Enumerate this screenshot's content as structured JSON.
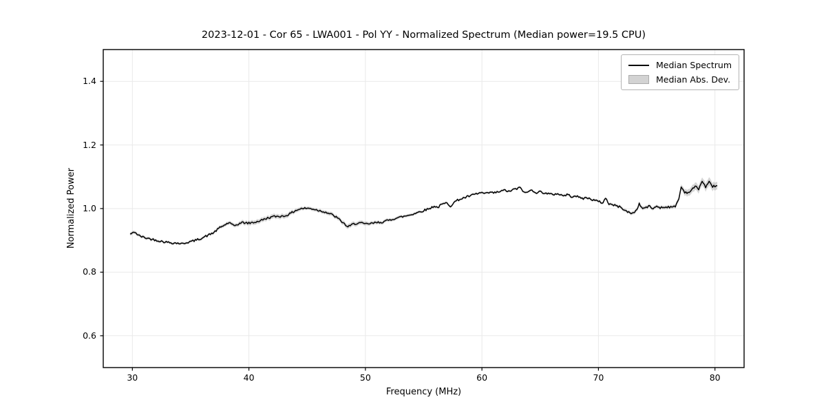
{
  "chart_data": {
    "type": "line",
    "title": "2023-12-01 - Cor 65 - LWA001 - Pol YY - Normalized Spectrum (Median power=19.5 CPU)",
    "xlabel": "Frequency (MHz)",
    "ylabel": "Normalized Power",
    "xlim": [
      27.5,
      82.5
    ],
    "ylim": [
      0.5,
      1.5
    ],
    "x_ticks": [
      30,
      40,
      50,
      60,
      70,
      80
    ],
    "x_tick_labels": [
      "30",
      "40",
      "50",
      "60",
      "70",
      "80"
    ],
    "y_ticks": [
      0.6,
      0.8,
      1.0,
      1.2,
      1.4
    ],
    "y_tick_labels": [
      "0.6",
      "0.8",
      "1.0",
      "1.2",
      "1.4"
    ],
    "grid": true,
    "legend": {
      "position": "upper right",
      "entries": [
        {
          "label": "Median Spectrum",
          "type": "line",
          "color": "#000000"
        },
        {
          "label": "Median Abs. Dev.",
          "type": "patch",
          "color": "#d3d3d3"
        }
      ]
    },
    "noise_amplitude": 0.0033,
    "series": [
      {
        "name": "Median Spectrum",
        "color": "#000000",
        "points": [
          [
            29.8,
            0.92
          ],
          [
            30.0,
            0.922
          ],
          [
            30.2,
            0.927
          ],
          [
            30.5,
            0.916
          ],
          [
            31.0,
            0.909
          ],
          [
            31.5,
            0.905
          ],
          [
            32.0,
            0.901
          ],
          [
            32.5,
            0.897
          ],
          [
            33.0,
            0.894
          ],
          [
            33.5,
            0.892
          ],
          [
            34.0,
            0.891
          ],
          [
            34.3,
            0.889
          ],
          [
            34.6,
            0.893
          ],
          [
            35.0,
            0.896
          ],
          [
            35.5,
            0.901
          ],
          [
            36.0,
            0.908
          ],
          [
            36.5,
            0.916
          ],
          [
            37.0,
            0.925
          ],
          [
            37.5,
            0.94
          ],
          [
            38.0,
            0.95
          ],
          [
            38.3,
            0.956
          ],
          [
            38.7,
            0.945
          ],
          [
            39.0,
            0.95
          ],
          [
            39.4,
            0.956
          ],
          [
            40.0,
            0.954
          ],
          [
            40.5,
            0.957
          ],
          [
            41.0,
            0.962
          ],
          [
            41.5,
            0.969
          ],
          [
            42.0,
            0.974
          ],
          [
            42.5,
            0.976
          ],
          [
            43.0,
            0.976
          ],
          [
            43.5,
            0.983
          ],
          [
            44.0,
            0.994
          ],
          [
            44.5,
            1.0
          ],
          [
            45.0,
            1.001
          ],
          [
            45.5,
            0.999
          ],
          [
            46.0,
            0.994
          ],
          [
            46.5,
            0.99
          ],
          [
            47.0,
            0.983
          ],
          [
            47.5,
            0.973
          ],
          [
            48.0,
            0.958
          ],
          [
            48.5,
            0.942
          ],
          [
            49.0,
            0.952
          ],
          [
            49.5,
            0.955
          ],
          [
            50.0,
            0.951
          ],
          [
            50.5,
            0.953
          ],
          [
            51.0,
            0.956
          ],
          [
            51.5,
            0.958
          ],
          [
            52.0,
            0.963
          ],
          [
            52.5,
            0.969
          ],
          [
            53.0,
            0.973
          ],
          [
            53.5,
            0.977
          ],
          [
            54.0,
            0.982
          ],
          [
            54.5,
            0.988
          ],
          [
            55.0,
            0.994
          ],
          [
            55.5,
            1.0
          ],
          [
            55.9,
            1.008
          ],
          [
            56.2,
            1.003
          ],
          [
            56.5,
            1.012
          ],
          [
            57.0,
            1.018
          ],
          [
            57.3,
            1.008
          ],
          [
            57.7,
            1.022
          ],
          [
            58.0,
            1.028
          ],
          [
            58.5,
            1.034
          ],
          [
            59.0,
            1.04
          ],
          [
            59.5,
            1.046
          ],
          [
            60.0,
            1.05
          ],
          [
            60.3,
            1.046
          ],
          [
            60.7,
            1.051
          ],
          [
            61.0,
            1.049
          ],
          [
            61.5,
            1.053
          ],
          [
            62.0,
            1.058
          ],
          [
            62.3,
            1.053
          ],
          [
            62.7,
            1.06
          ],
          [
            63.0,
            1.062
          ],
          [
            63.3,
            1.066
          ],
          [
            63.7,
            1.048
          ],
          [
            64.0,
            1.054
          ],
          [
            64.3,
            1.058
          ],
          [
            64.7,
            1.05
          ],
          [
            65.0,
            1.053
          ],
          [
            65.5,
            1.048
          ],
          [
            66.0,
            1.044
          ],
          [
            66.5,
            1.047
          ],
          [
            67.0,
            1.04
          ],
          [
            67.3,
            1.044
          ],
          [
            67.7,
            1.038
          ],
          [
            68.0,
            1.041
          ],
          [
            68.3,
            1.035
          ],
          [
            68.7,
            1.032
          ],
          [
            69.0,
            1.034
          ],
          [
            69.5,
            1.028
          ],
          [
            70.0,
            1.022
          ],
          [
            70.4,
            1.018
          ],
          [
            70.6,
            1.034
          ],
          [
            70.9,
            1.015
          ],
          [
            71.2,
            1.012
          ],
          [
            71.5,
            1.009
          ],
          [
            72.0,
            1.003
          ],
          [
            72.3,
            0.993
          ],
          [
            72.6,
            0.988
          ],
          [
            72.9,
            0.985
          ],
          [
            73.2,
            0.992
          ],
          [
            73.5,
            1.014
          ],
          [
            73.8,
            1.0
          ],
          [
            74.1,
            1.004
          ],
          [
            74.4,
            1.007
          ],
          [
            74.7,
            0.999
          ],
          [
            75.0,
            1.008
          ],
          [
            75.3,
            1.003
          ],
          [
            75.6,
            1.004
          ],
          [
            76.0,
            1.006
          ],
          [
            76.3,
            1.003
          ],
          [
            76.6,
            1.008
          ],
          [
            76.9,
            1.03
          ],
          [
            77.1,
            1.068
          ],
          [
            77.4,
            1.052
          ],
          [
            77.7,
            1.05
          ],
          [
            78.0,
            1.058
          ],
          [
            78.3,
            1.07
          ],
          [
            78.6,
            1.062
          ],
          [
            78.9,
            1.086
          ],
          [
            79.2,
            1.068
          ],
          [
            79.5,
            1.083
          ],
          [
            79.8,
            1.07
          ],
          [
            80.2,
            1.072
          ]
        ]
      },
      {
        "name": "Median Abs. Dev.",
        "color": "#9a9a9a",
        "band_halfwidth_points": [
          [
            29.8,
            0.005
          ],
          [
            33.0,
            0.004
          ],
          [
            36.0,
            0.004
          ],
          [
            39.0,
            0.006
          ],
          [
            40.0,
            0.007
          ],
          [
            43.0,
            0.007
          ],
          [
            45.0,
            0.005
          ],
          [
            47.0,
            0.006
          ],
          [
            48.5,
            0.007
          ],
          [
            50.0,
            0.006
          ],
          [
            52.0,
            0.005
          ],
          [
            55.0,
            0.004
          ],
          [
            60.0,
            0.0035
          ],
          [
            65.0,
            0.0035
          ],
          [
            70.0,
            0.004
          ],
          [
            72.5,
            0.005
          ],
          [
            73.5,
            0.006
          ],
          [
            75.0,
            0.005
          ],
          [
            76.5,
            0.006
          ],
          [
            77.5,
            0.01
          ],
          [
            78.5,
            0.012
          ],
          [
            79.5,
            0.013
          ],
          [
            80.2,
            0.012
          ]
        ]
      }
    ]
  },
  "colors": {
    "line": "#000000",
    "band": "#9a9a9a",
    "grid": "#e9e9e9",
    "spine": "#000000",
    "background": "#ffffff"
  }
}
